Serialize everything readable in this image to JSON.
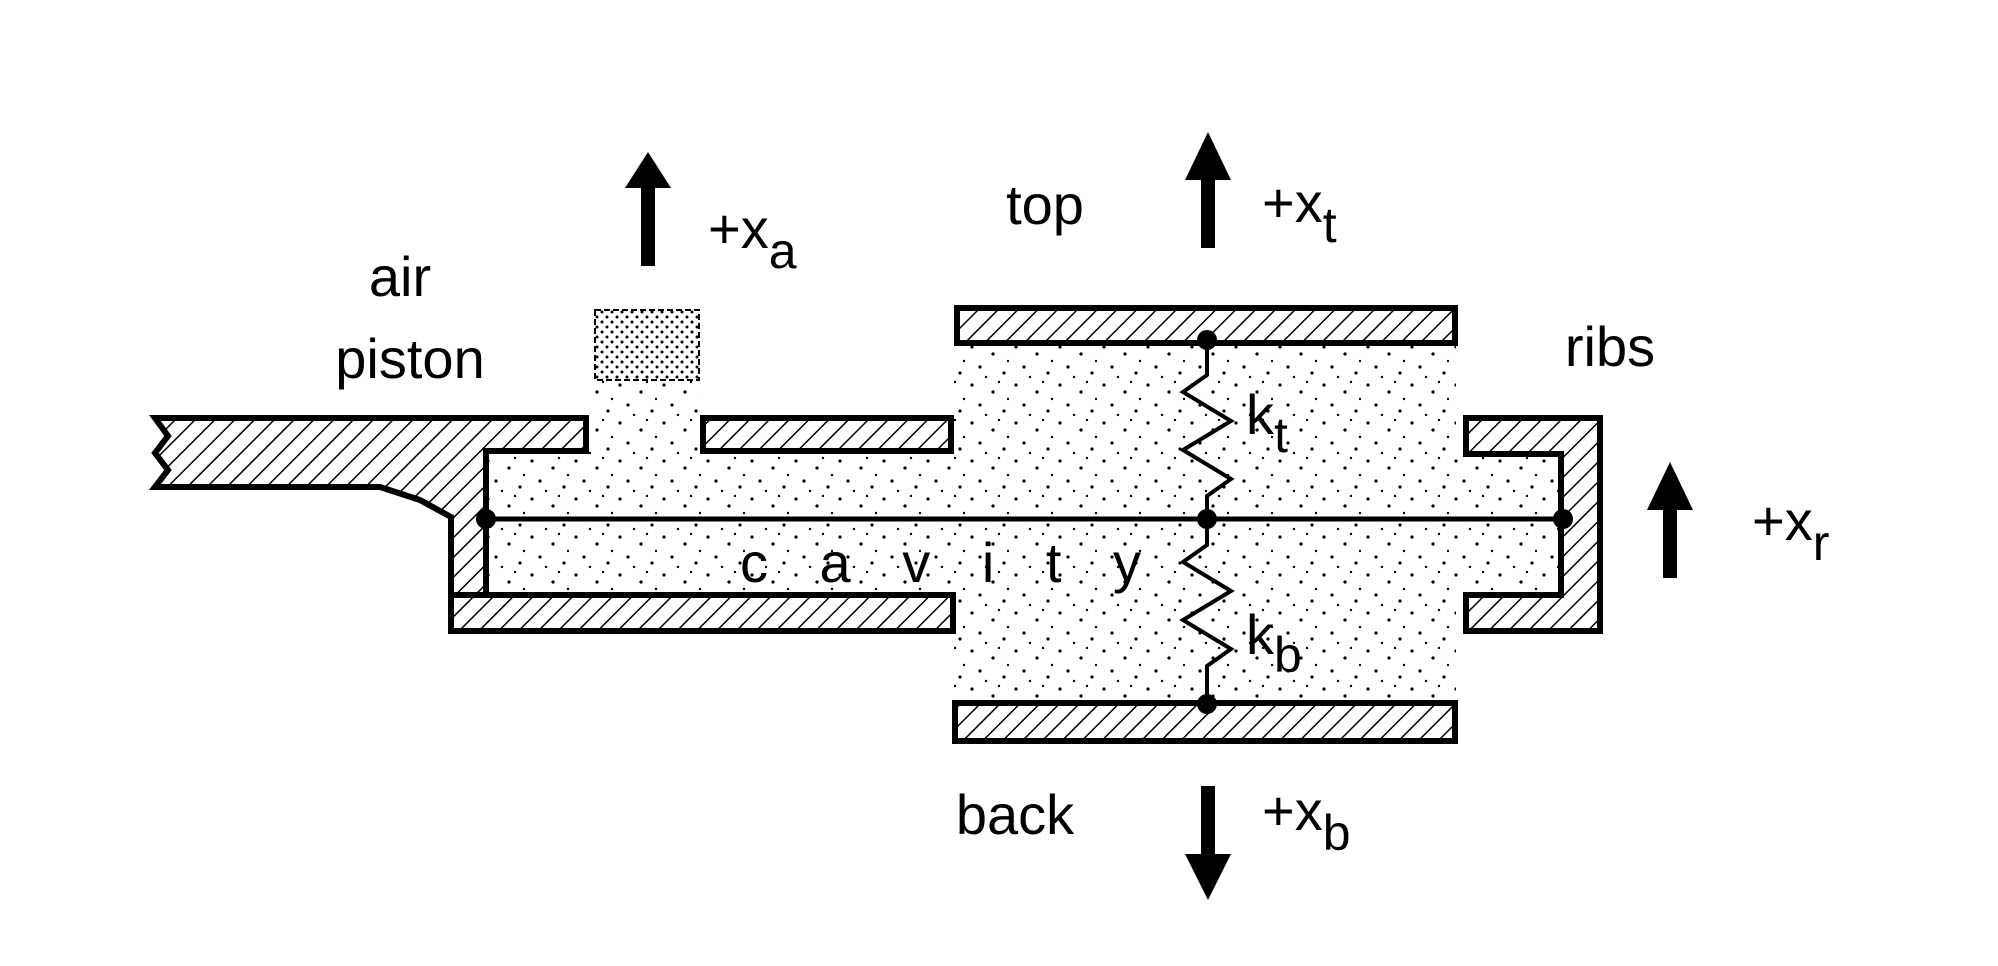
{
  "labels": {
    "air": "air",
    "piston": "piston",
    "top": "top",
    "ribs": "ribs",
    "back": "back",
    "cavity": "c a v i t y"
  },
  "motions": {
    "xa": {
      "sign": "+x",
      "sub": "a",
      "direction": "up"
    },
    "xt": {
      "sign": "+x",
      "sub": "t",
      "direction": "up"
    },
    "xr": {
      "sign": "+x",
      "sub": "r",
      "direction": "up"
    },
    "xb": {
      "sign": "+x",
      "sub": "b",
      "direction": "down"
    }
  },
  "springs": {
    "kt": {
      "k": "k",
      "sub": "t"
    },
    "kb": {
      "k": "k",
      "sub": "b"
    }
  },
  "colors": {
    "ink": "#000000",
    "background": "#ffffff"
  }
}
